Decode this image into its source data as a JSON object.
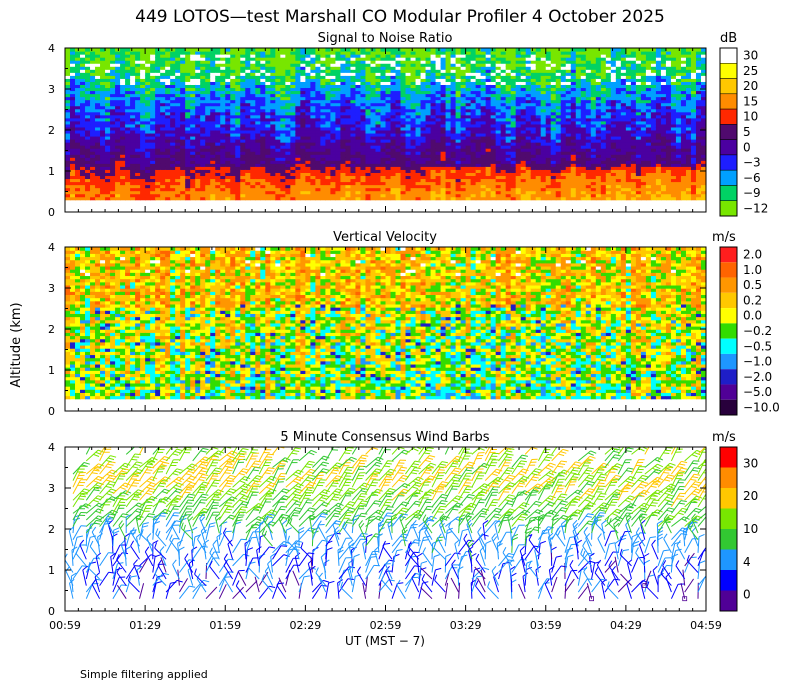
{
  "figure": {
    "title": "449 LOTOS—test Marshall CO Modular Profiler  4 October 2025",
    "ylabel": "Altitude (km)",
    "xlabel": "UT  (MST − 7)",
    "x_ticks": [
      "00:59",
      "01:29",
      "01:59",
      "02:29",
      "02:59",
      "03:29",
      "03:59",
      "04:29",
      "04:59"
    ],
    "y_ticks": [
      "0",
      "1",
      "2",
      "3",
      "4"
    ],
    "footnote": "Simple filtering applied"
  },
  "chart_data": [
    {
      "type": "heatmap",
      "title": "Signal to Noise Ratio",
      "colorbar_unit": "dB",
      "x_range": [
        "00:59",
        "04:59"
      ],
      "ylim": [
        0,
        4
      ],
      "data_altitude_km": [
        0.3,
        4.0
      ],
      "colorbar": {
        "labels": [
          "30",
          "25",
          "20",
          "15",
          "10",
          "5",
          "0",
          "−3",
          "−6",
          "−9",
          "−12"
        ],
        "colors": [
          "#ffffff",
          "#ffff00",
          "#ffc800",
          "#ff8c00",
          "#ff2800",
          "#500a6e",
          "#4b00a0",
          "#1e1eff",
          "#00a0ff",
          "#00d264",
          "#78e600"
        ]
      },
      "profile_by_altitude_km": [
        {
          "alt": 0.4,
          "db": 13
        },
        {
          "alt": 0.8,
          "db": 9
        },
        {
          "alt": 1.2,
          "db": 3
        },
        {
          "alt": 1.6,
          "db": 1
        },
        {
          "alt": 2.0,
          "db": -2
        },
        {
          "alt": 2.5,
          "db": -4
        },
        {
          "alt": 3.0,
          "db": -7
        },
        {
          "alt": 3.5,
          "db": -10
        },
        {
          "alt": 4.0,
          "db": -11
        }
      ]
    },
    {
      "type": "heatmap",
      "title": "Vertical Velocity",
      "colorbar_unit": "m/s",
      "x_range": [
        "00:59",
        "04:59"
      ],
      "ylim": [
        0,
        4
      ],
      "data_altitude_km": [
        0.3,
        4.0
      ],
      "colorbar": {
        "labels": [
          "2.0",
          "1.0",
          "0.5",
          "0.2",
          "0.0",
          "−0.2",
          "−0.5",
          "−1.0",
          "−2.0",
          "−5.0",
          "−10.0"
        ],
        "colors": [
          "#ff1e1e",
          "#ff6400",
          "#ff9600",
          "#ffc800",
          "#ffff00",
          "#32dc00",
          "#00ffff",
          "#1e96ff",
          "#1e1ec8",
          "#500096",
          "#28003c"
        ]
      },
      "typical_values_m_s": {
        "above_2_5_km": 0.2,
        "below_2_5_km": -0.2
      }
    },
    {
      "type": "scatter",
      "title": "5 Minute Consensus Wind Barbs",
      "colorbar_unit": "m/s",
      "x_range": [
        "00:59",
        "04:59"
      ],
      "ylim": [
        0,
        4
      ],
      "colorbar": {
        "labels": [
          "30",
          "20",
          "10",
          "4",
          "0"
        ],
        "colors": [
          "#ff0000",
          "#ff8c00",
          "#ffc800",
          "#78e600",
          "#32c832",
          "#1e96ff",
          "#0000ff",
          "#500096"
        ]
      },
      "speed_by_altitude_km": [
        {
          "alt": 0.5,
          "speed_m_s": 4
        },
        {
          "alt": 1.0,
          "speed_m_s": 5
        },
        {
          "alt": 1.5,
          "speed_m_s": 6
        },
        {
          "alt": 2.0,
          "speed_m_s": 8
        },
        {
          "alt": 2.5,
          "speed_m_s": 10
        },
        {
          "alt": 3.0,
          "speed_m_s": 12
        },
        {
          "alt": 3.5,
          "speed_m_s": 11
        }
      ]
    }
  ]
}
